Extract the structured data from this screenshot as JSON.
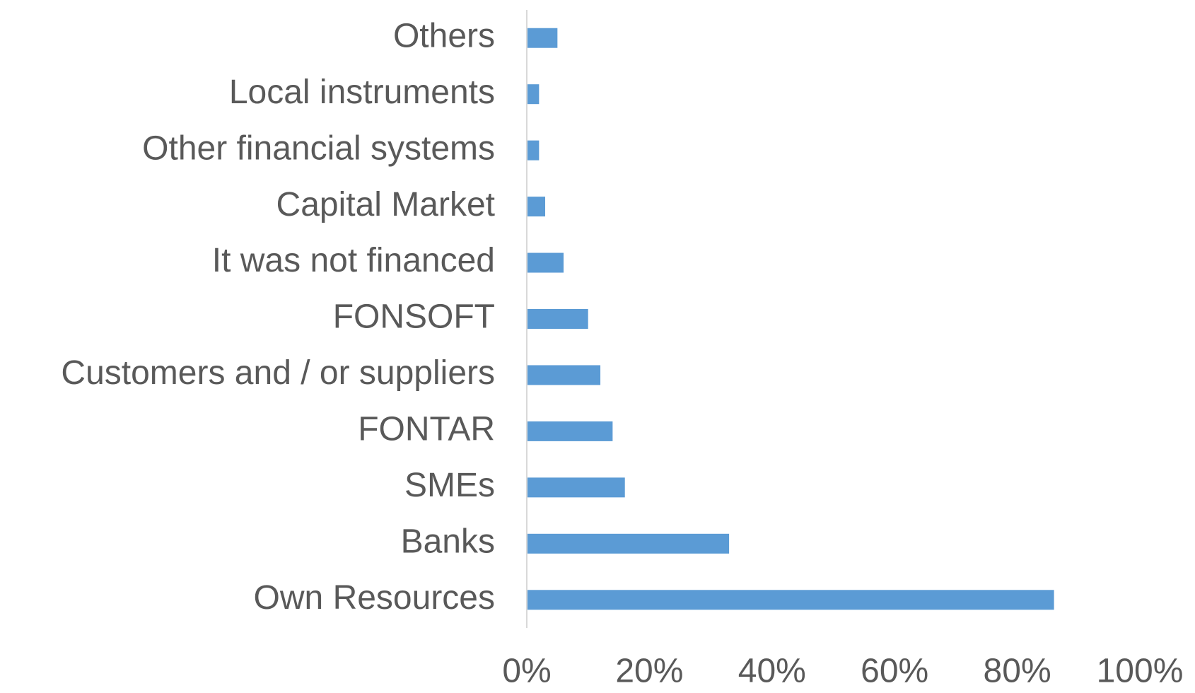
{
  "chart_data": {
    "type": "hbar",
    "categories": [
      "Own Resources",
      "Banks",
      "SMEs",
      "FONTAR",
      "Customers and / or suppliers",
      "FONSOFT",
      "It was not financed",
      "Capital Market",
      "Other financial systems",
      "Local instruments",
      "Others"
    ],
    "values": [
      86,
      33,
      16,
      14,
      12,
      10,
      6,
      3,
      2,
      2,
      5
    ],
    "color": "#5b9bd5",
    "xlim": [
      0,
      100
    ],
    "xticks": [
      {
        "value": 0,
        "label": "0%"
      },
      {
        "value": 20,
        "label": "20%"
      },
      {
        "value": 40,
        "label": "40%"
      },
      {
        "value": 60,
        "label": "60%"
      },
      {
        "value": 80,
        "label": "80%"
      },
      {
        "value": 100,
        "label": "100%"
      }
    ],
    "grid": false
  }
}
